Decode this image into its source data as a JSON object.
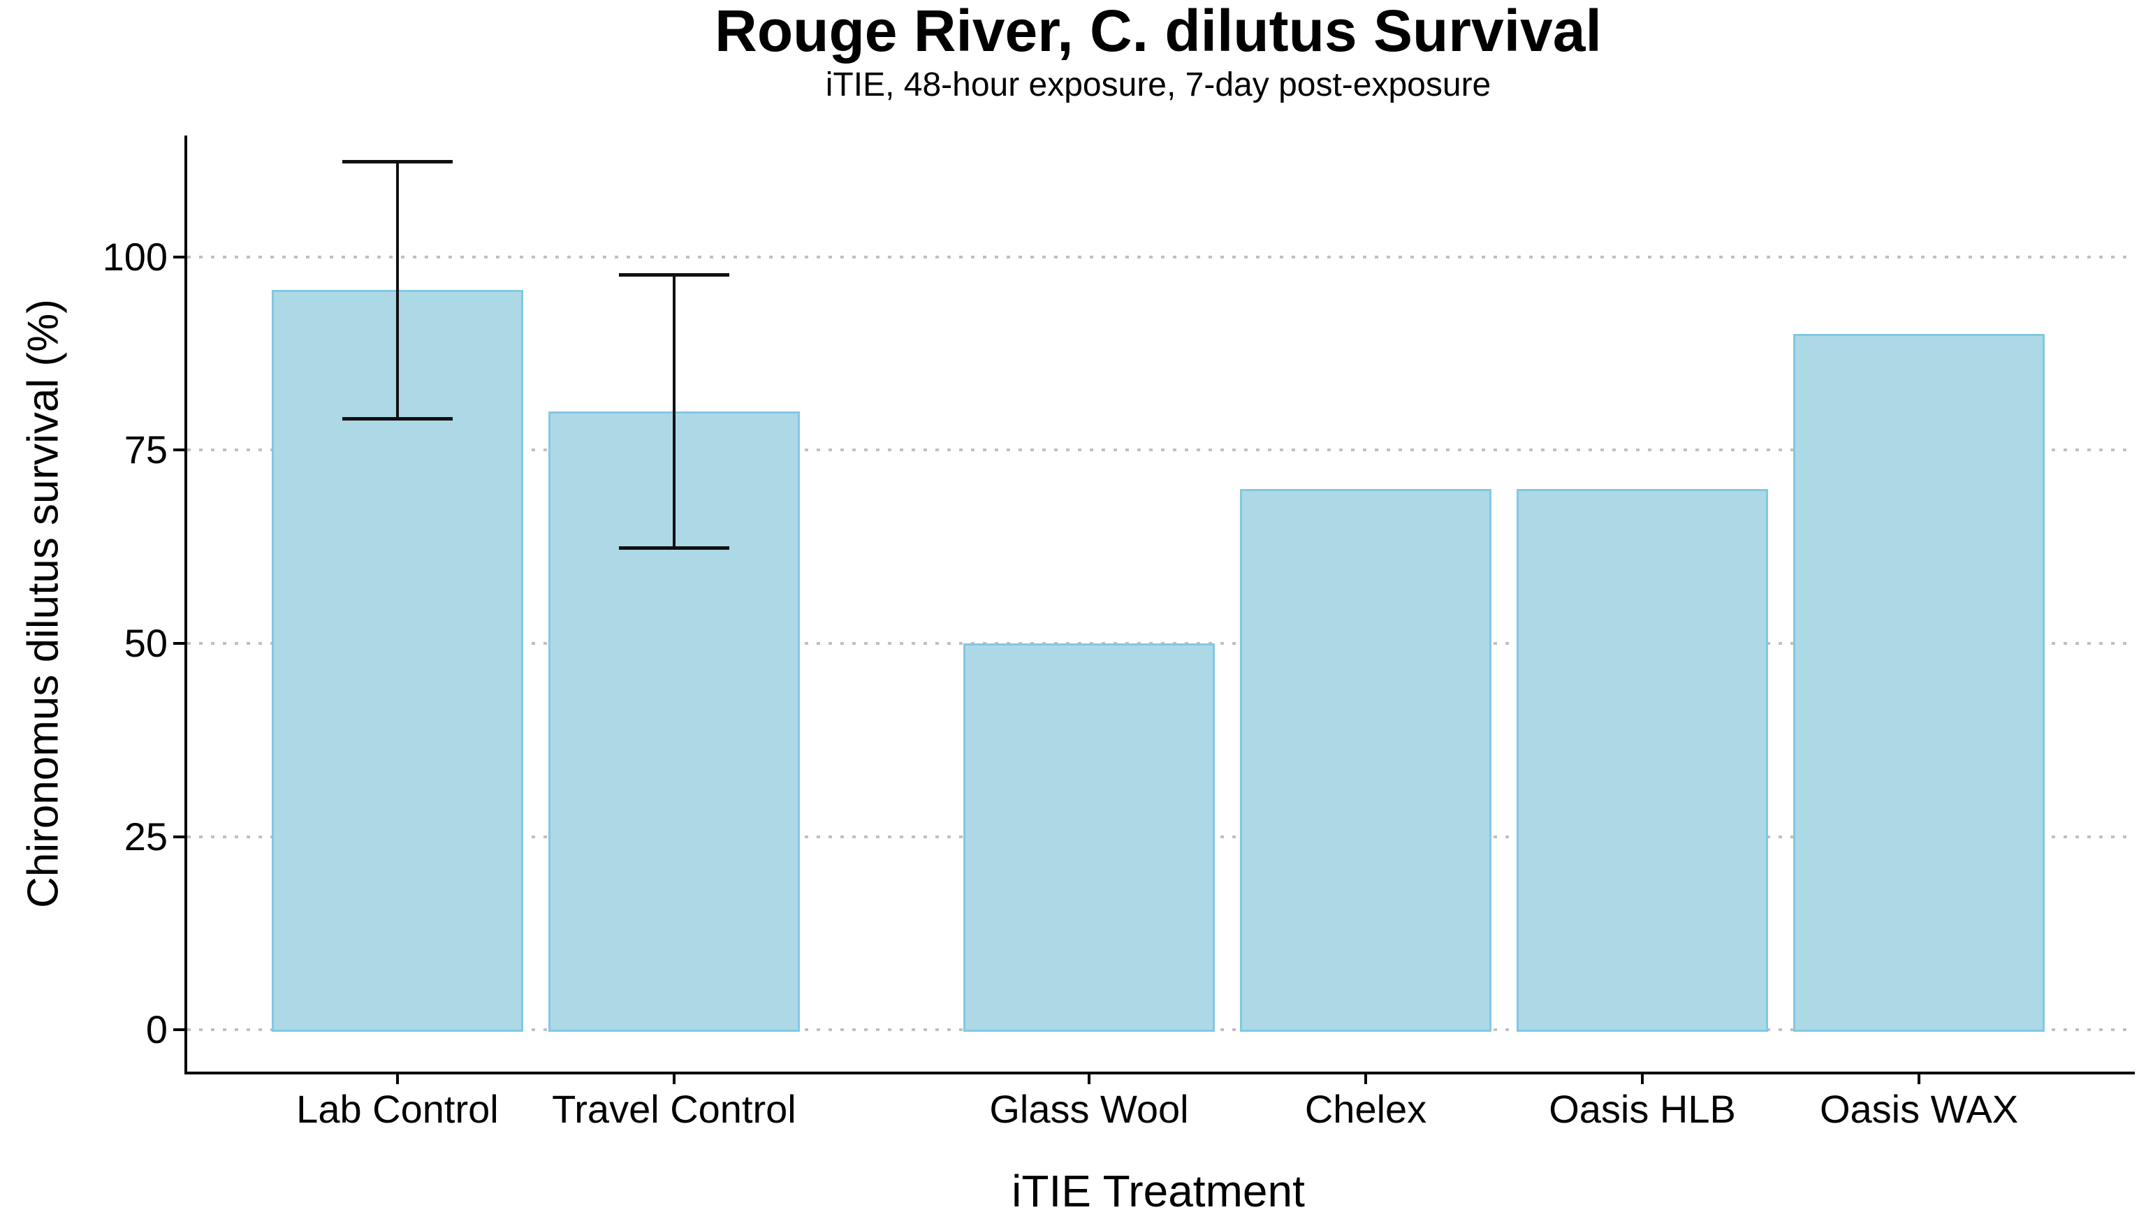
{
  "header": {
    "title": "Rouge River, C. dilutus Survival",
    "subtitle": "iTIE, 48-hour exposure, 7-day post-exposure"
  },
  "axes": {
    "x_title": "iTIE Treatment",
    "y_title": "Chironomus dilutus survival (%)",
    "y_tick_labels": [
      "0",
      "25",
      "50",
      "75",
      "100"
    ],
    "x_tick_labels": [
      "Lab Control",
      "Travel Control",
      "Glass Wool",
      "Chelex",
      "Oasis HLB",
      "Oasis WAX"
    ]
  },
  "colors": {
    "bar_fill": "#ADD8E6",
    "bar_stroke": "#82C8E4",
    "gridline": "#c0c0c0",
    "axis_line": "#000000",
    "error_bar": "#111111",
    "text": "#000000",
    "background": "#ffffff"
  },
  "chart_data": {
    "type": "bar",
    "title": "Rouge River, C. dilutus Survival",
    "subtitle": "iTIE, 48-hour exposure, 7-day post-exposure",
    "xlabel": "iTIE Treatment",
    "ylabel": "Chironomus dilutus survival (%)",
    "categories": [
      "Lab Control",
      "Travel Control",
      "Glass Wool",
      "Chelex",
      "Oasis HLB",
      "Oasis WAX"
    ],
    "values": [
      95.7,
      80,
      50,
      70,
      70,
      90
    ],
    "error_bars": [
      {
        "category": "Lab Control",
        "low": 79.0,
        "high": 112.4
      },
      {
        "category": "Travel Control",
        "low": 62.3,
        "high": 97.7
      }
    ],
    "x_positions_units": [
      1,
      2,
      3.5,
      4.5,
      5.5,
      6.5
    ],
    "bar_width_units": 0.907,
    "error_cap_width_units": 0.4,
    "xlim": [
      0.23,
      7.27
    ],
    "ylim": [
      -5.4,
      115.7
    ],
    "yticks": [
      0,
      25,
      50,
      75,
      100
    ],
    "grid": "horizontal dotted at yticks",
    "legend": "none"
  }
}
